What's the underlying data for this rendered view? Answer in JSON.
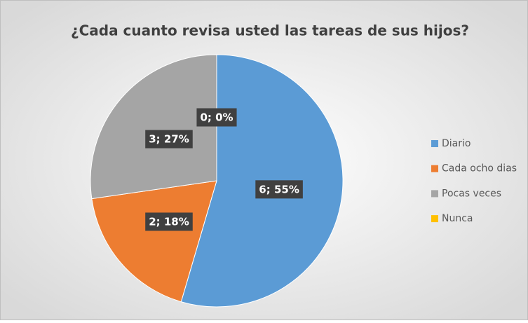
{
  "chart_data": {
    "type": "pie",
    "title": "¿Cada cuanto revisa usted las tareas de sus hijos?",
    "categories": [
      "Diario",
      "Cada ocho dias",
      "Pocas veces",
      "Nunca"
    ],
    "values": [
      6,
      2,
      3,
      0
    ],
    "value_labels": [
      "6; 55%",
      "2; 18%",
      "3; 27%",
      "0; 0%"
    ],
    "colors": [
      "#5b9bd5",
      "#ed7d31",
      "#a5a5a5",
      "#ffc000"
    ],
    "legend": "right"
  }
}
